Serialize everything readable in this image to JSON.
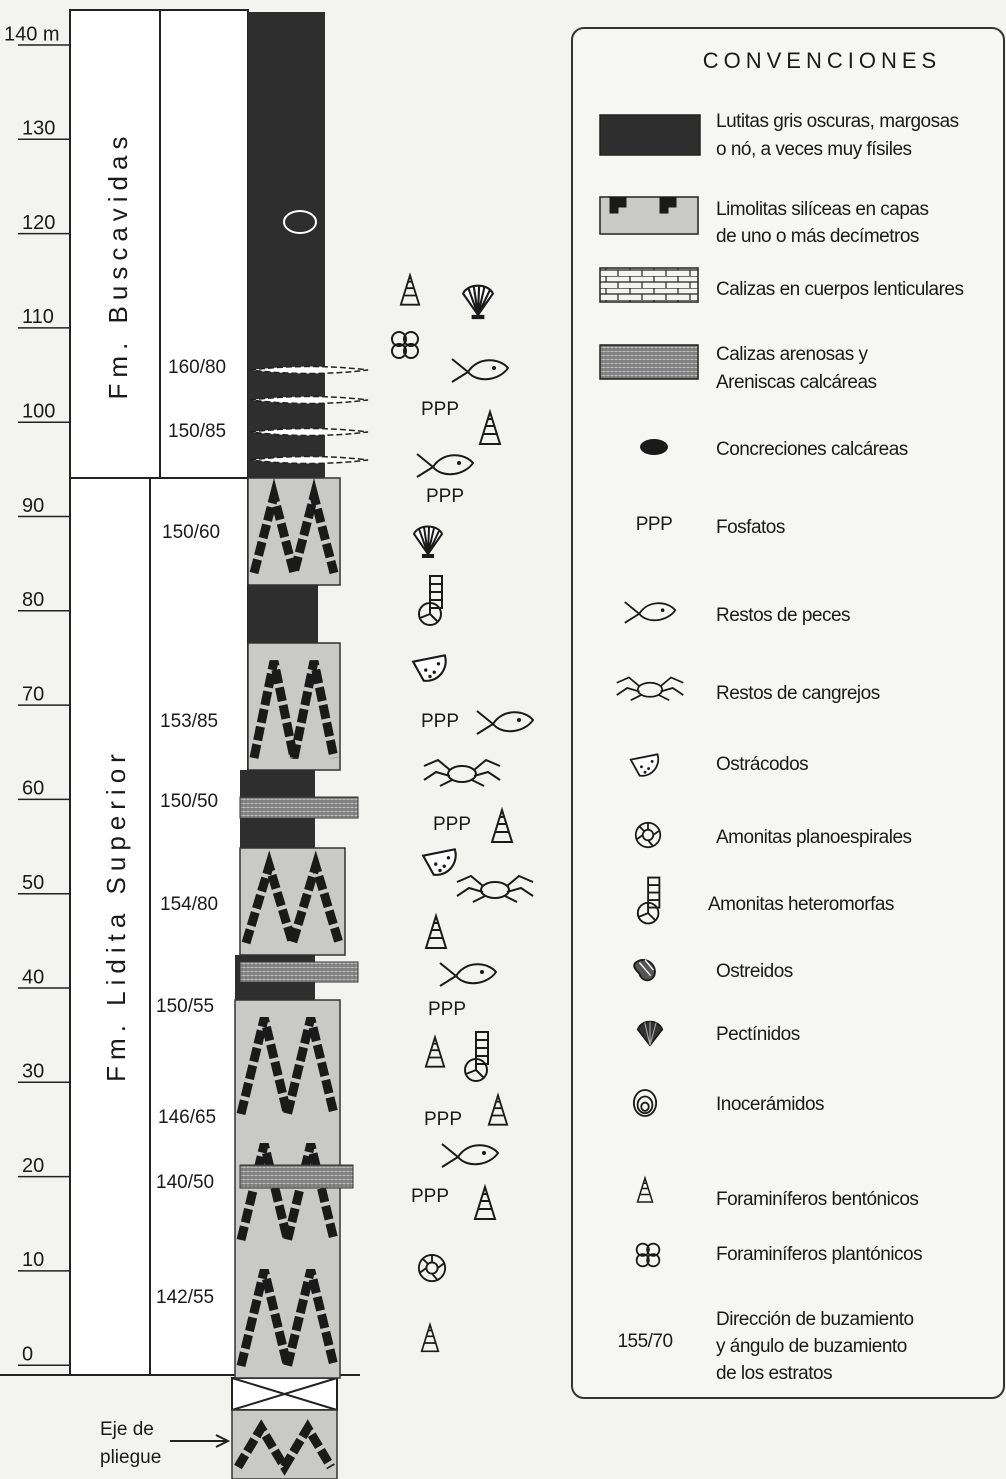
{
  "column": {
    "depth_ticks": [
      "140 m",
      "130",
      "120",
      "110",
      "100",
      "90",
      "80",
      "70",
      "60",
      "50",
      "40",
      "30",
      "20",
      "10",
      "0"
    ],
    "formations": [
      "Fm. Buscavidas",
      "Fm. Lidita Superior"
    ],
    "dip_labels": [
      "160/80",
      "150/85",
      "150/60",
      "153/85",
      "150/50",
      "154/80",
      "150/55",
      "146/65",
      "140/50",
      "142/55"
    ],
    "phosphate_labels": [
      "PPP",
      "PPP",
      "PPP",
      "PPP",
      "PPP",
      "PPP",
      "PPP"
    ],
    "fold_axis_label": [
      "Eje de",
      "pliegue"
    ]
  },
  "legend": {
    "title": "CONVENCIONES",
    "items": [
      {
        "lines": [
          "Lutitas gris oscuras, margosas",
          "o nó, a veces muy físiles"
        ]
      },
      {
        "lines": [
          "Limolitas silíceas en capas",
          "de uno o más decímetros"
        ]
      },
      {
        "lines": [
          "Calizas en cuerpos lenticulares"
        ]
      },
      {
        "lines": [
          "Calizas arenosas y",
          "Areniscas calcáreas"
        ]
      },
      {
        "lines": [
          "Concreciones calcáreas"
        ]
      },
      {
        "symbol": "PPP",
        "lines": [
          "Fosfatos"
        ]
      },
      {
        "lines": [
          "Restos de peces"
        ]
      },
      {
        "lines": [
          "Restos de cangrejos"
        ]
      },
      {
        "lines": [
          "Ostrácodos"
        ]
      },
      {
        "lines": [
          "Amonitas planoespirales"
        ]
      },
      {
        "lines": [
          "Amonitas heteromorfas"
        ]
      },
      {
        "lines": [
          "Ostreidos"
        ]
      },
      {
        "lines": [
          "Pectínidos"
        ]
      },
      {
        "lines": [
          "Inocerámidos"
        ]
      },
      {
        "lines": [
          "Foraminíferos bentónicos"
        ]
      },
      {
        "lines": [
          "Foraminíferos plantónicos"
        ]
      },
      {
        "symbol": "155/70",
        "lines": [
          "Dirección de buzamiento",
          "y ángulo de buzamiento",
          "de los estratos"
        ]
      }
    ]
  }
}
